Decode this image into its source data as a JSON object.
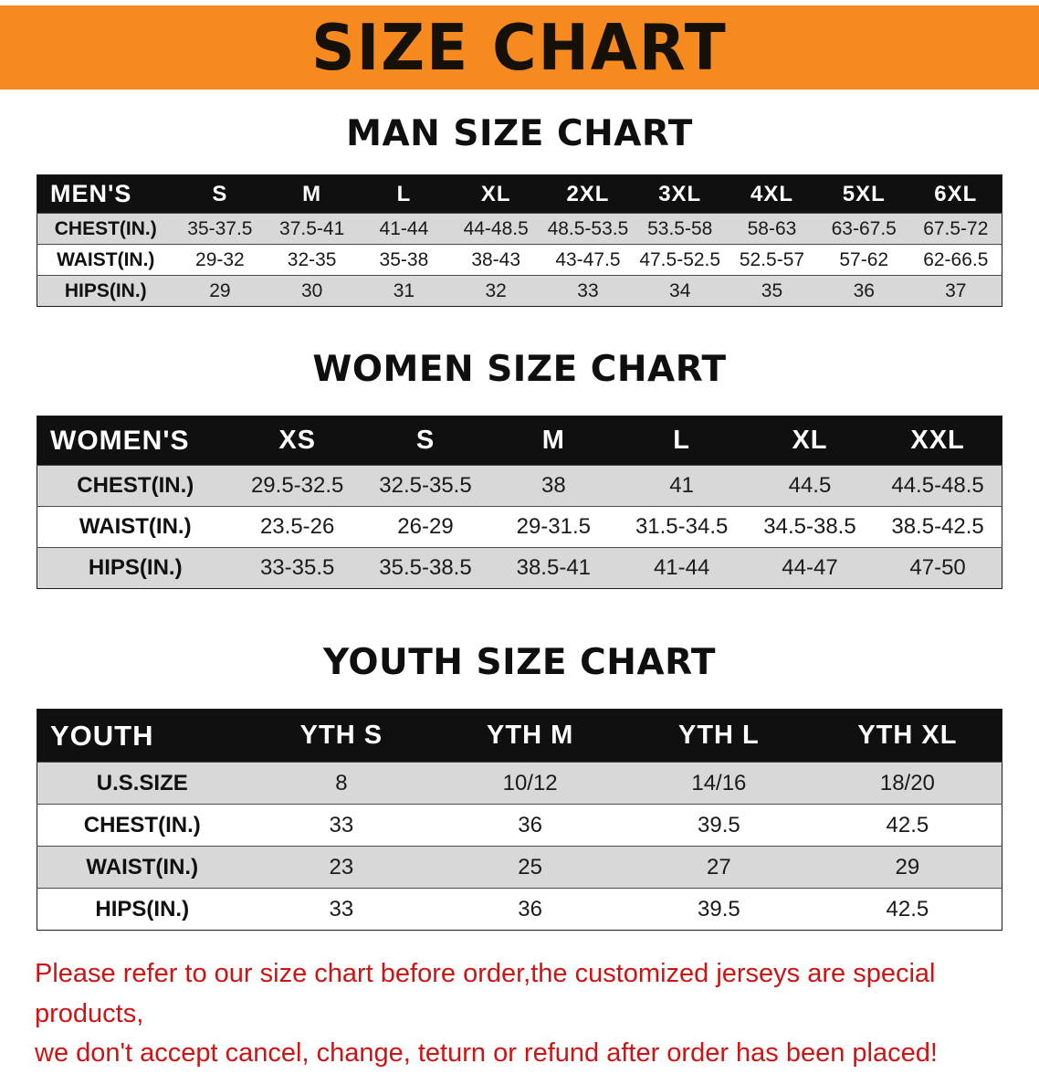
{
  "colors": {
    "banner_bg": "#f68a1e",
    "header_row_bg": "#101010",
    "stripe_bg": "#d8d8d8",
    "footer_text": "#cc1414"
  },
  "banner": {
    "title": "SIZE CHART"
  },
  "sections": [
    {
      "id": "men",
      "heading": "MAN SIZE CHART",
      "table": {
        "header": [
          "MEN'S",
          "S",
          "M",
          "L",
          "XL",
          "2XL",
          "3XL",
          "4XL",
          "5XL",
          "6XL"
        ],
        "rows": [
          [
            "CHEST(IN.)",
            "35-37.5",
            "37.5-41",
            "41-44",
            "44-48.5",
            "48.5-53.5",
            "53.5-58",
            "58-63",
            "63-67.5",
            "67.5-72"
          ],
          [
            "WAIST(IN.)",
            "29-32",
            "32-35",
            "35-38",
            "38-43",
            "43-47.5",
            "47.5-52.5",
            "52.5-57",
            "57-62",
            "62-66.5"
          ],
          [
            "HIPS(IN.)",
            "29",
            "30",
            "31",
            "32",
            "33",
            "34",
            "35",
            "36",
            "37"
          ]
        ]
      }
    },
    {
      "id": "women",
      "heading": "WOMEN SIZE CHART",
      "table": {
        "header": [
          "WOMEN'S",
          "XS",
          "S",
          "M",
          "L",
          "XL",
          "XXL"
        ],
        "rows": [
          [
            "CHEST(IN.)",
            "29.5-32.5",
            "32.5-35.5",
            "38",
            "41",
            "44.5",
            "44.5-48.5"
          ],
          [
            "WAIST(IN.)",
            "23.5-26",
            "26-29",
            "29-31.5",
            "31.5-34.5",
            "34.5-38.5",
            "38.5-42.5"
          ],
          [
            "HIPS(IN.)",
            "33-35.5",
            "35.5-38.5",
            "38.5-41",
            "41-44",
            "44-47",
            "47-50"
          ]
        ]
      }
    },
    {
      "id": "youth",
      "heading": "YOUTH SIZE CHART",
      "table": {
        "header": [
          "YOUTH",
          "YTH S",
          "YTH M",
          "YTH L",
          "YTH XL"
        ],
        "rows": [
          [
            "U.S.SIZE",
            "8",
            "10/12",
            "14/16",
            "18/20"
          ],
          [
            "CHEST(IN.)",
            "33",
            "36",
            "39.5",
            "42.5"
          ],
          [
            "WAIST(IN.)",
            "23",
            "25",
            "27",
            "29"
          ],
          [
            "HIPS(IN.)",
            "33",
            "36",
            "39.5",
            "42.5"
          ]
        ]
      }
    }
  ],
  "footer": {
    "lines": [
      "Please refer to our size chart before order,the customized jerseys are special products,",
      "we don't accept cancel, change, teturn or refund after order has been placed!"
    ]
  }
}
